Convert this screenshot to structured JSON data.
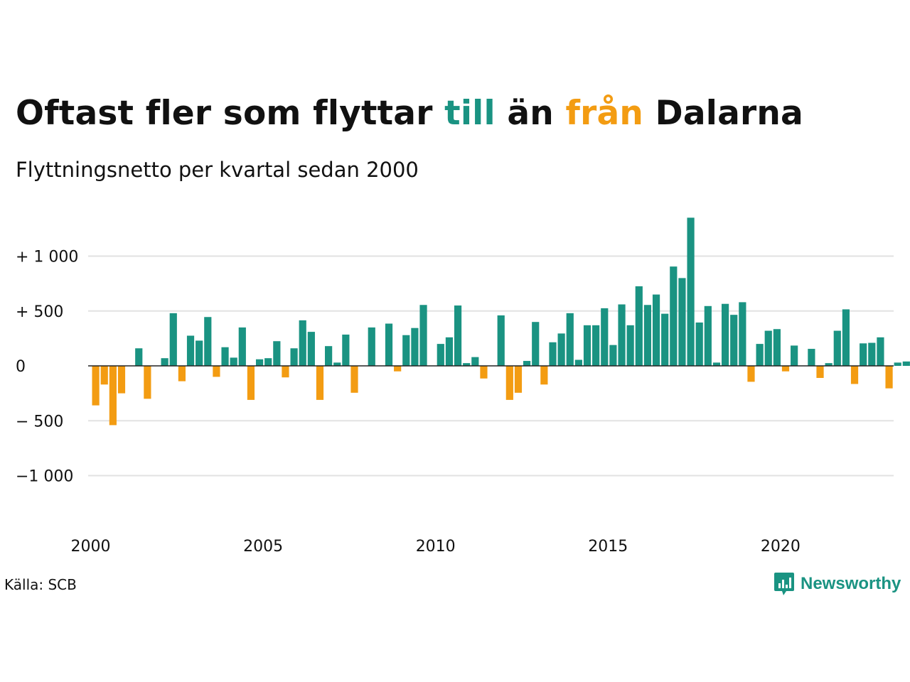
{
  "title": {
    "part1": "Oftast fler som flyttar ",
    "to_word": "till",
    "part2": " än ",
    "from_word": "från",
    "part3": " Dalarna"
  },
  "subtitle": "Flyttningsnetto per kvartal sedan 2000",
  "source": "Källa: SCB",
  "brand": "Newsworthy",
  "colors": {
    "positive": "#1a9382",
    "negative": "#f39c12",
    "grid": "#e2e2e2",
    "axis": "#222222"
  },
  "chart_data": {
    "type": "bar",
    "x_start": "2000 Q1",
    "ylim": [
      -1200,
      1400
    ],
    "yticks": [
      -1000,
      -500,
      0,
      500,
      1000
    ],
    "ytick_labels": [
      "−1 000",
      "−  500",
      "0",
      "+   500",
      "+ 1 000"
    ],
    "xticks": [
      "2000",
      "2005",
      "2010",
      "2015",
      "2020"
    ],
    "grid": true,
    "values": [
      -360,
      -170,
      -540,
      -250,
      0,
      160,
      -300,
      0,
      70,
      480,
      -140,
      275,
      230,
      445,
      -100,
      170,
      75,
      350,
      -310,
      60,
      70,
      225,
      -105,
      160,
      415,
      310,
      -310,
      180,
      30,
      285,
      -245,
      0,
      350,
      0,
      385,
      -50,
      280,
      345,
      555,
      0,
      200,
      260,
      550,
      25,
      80,
      -115,
      0,
      460,
      -310,
      -245,
      45,
      400,
      -170,
      215,
      295,
      480,
      55,
      370,
      370,
      525,
      190,
      560,
      370,
      725,
      555,
      650,
      475,
      905,
      800,
      1350,
      395,
      545,
      30,
      565,
      465,
      580,
      -145,
      200,
      320,
      335,
      -50,
      185,
      0,
      155,
      -110,
      25,
      320,
      515,
      -165,
      205,
      210,
      260,
      -205,
      30,
      40
    ]
  }
}
